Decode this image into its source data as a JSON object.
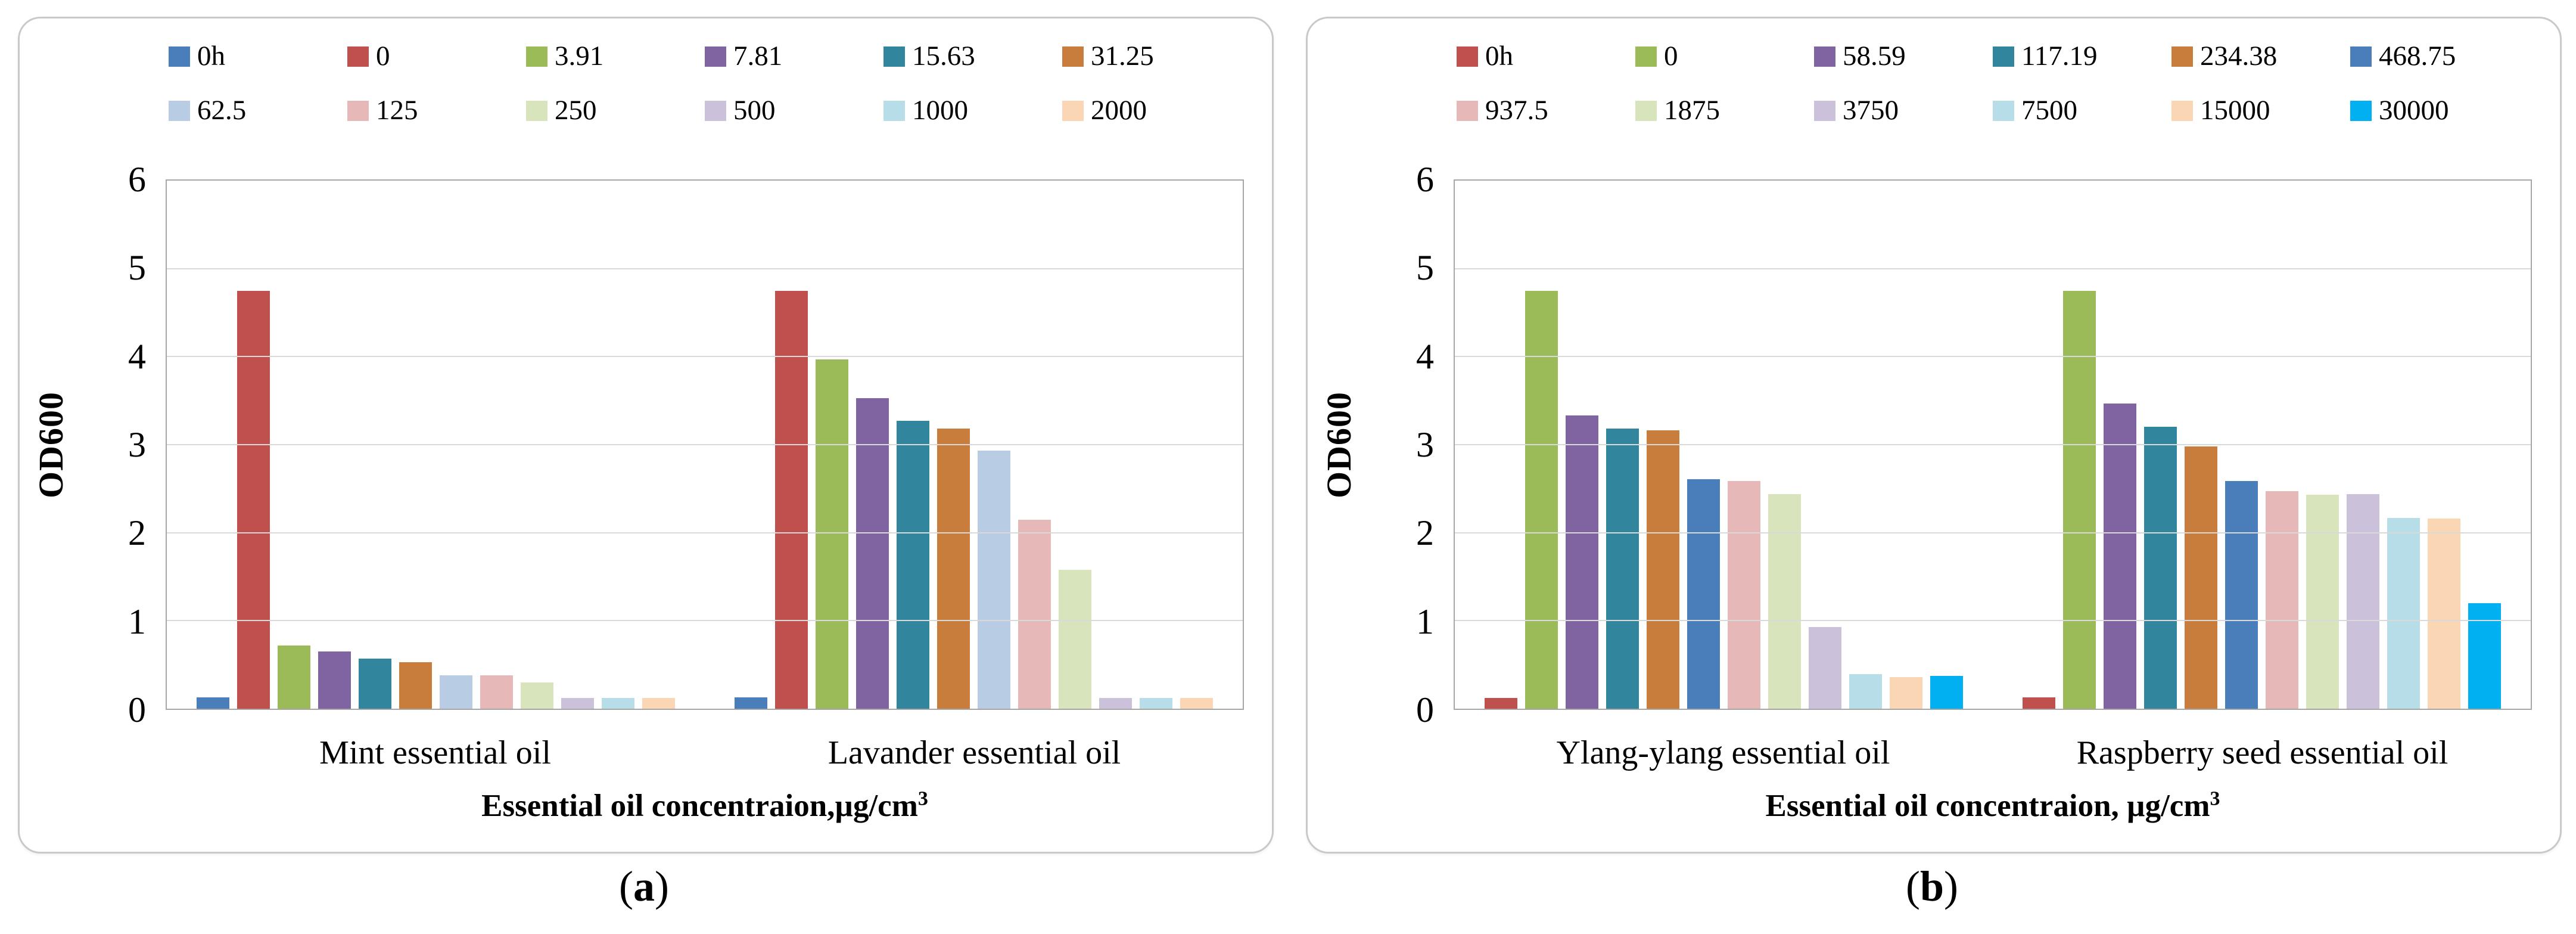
{
  "chart_data": [
    {
      "type": "bar",
      "panel": "a",
      "caption_prefix": "(",
      "caption_letter": "a",
      "caption_suffix": ")",
      "ylabel": "OD600",
      "xlabel_main": "Essential oil concentraion,µg/cm",
      "xlabel_sup": "3",
      "ylim": [
        0,
        6
      ],
      "yticks": [
        "0",
        "1",
        "2",
        "3",
        "4",
        "5",
        "6"
      ],
      "grid": true,
      "legend_position": "top",
      "categories": [
        "Mint essential oil",
        "Lavander essential oil"
      ],
      "series": [
        {
          "name": "0h",
          "color": "#4a7ebb",
          "values": [
            0.13,
            0.13
          ]
        },
        {
          "name": "0",
          "color": "#c0504d",
          "values": [
            4.75,
            4.75
          ]
        },
        {
          "name": "3.91",
          "color": "#9bbb59",
          "values": [
            0.72,
            3.97
          ]
        },
        {
          "name": "7.81",
          "color": "#8064a2",
          "values": [
            0.65,
            3.53
          ]
        },
        {
          "name": "15.63",
          "color": "#31859c",
          "values": [
            0.57,
            3.27
          ]
        },
        {
          "name": "31.25",
          "color": "#c87d3c",
          "values": [
            0.53,
            3.18
          ]
        },
        {
          "name": "62.5",
          "color": "#b8cce4",
          "values": [
            0.38,
            2.93
          ]
        },
        {
          "name": "125",
          "color": "#e6b9b8",
          "values": [
            0.38,
            2.15
          ]
        },
        {
          "name": "250",
          "color": "#d7e4bc",
          "values": [
            0.3,
            1.58
          ]
        },
        {
          "name": "500",
          "color": "#ccc1da",
          "values": [
            0.12,
            0.12
          ]
        },
        {
          "name": "1000",
          "color": "#b7dee8",
          "values": [
            0.12,
            0.12
          ]
        },
        {
          "name": "2000",
          "color": "#fbd6b5",
          "values": [
            0.12,
            0.12
          ]
        }
      ]
    },
    {
      "type": "bar",
      "panel": "b",
      "caption_prefix": "(",
      "caption_letter": "b",
      "caption_suffix": ")",
      "ylabel": "OD600",
      "xlabel_main": "Essential oil concentraion, µg/cm",
      "xlabel_sup": "3",
      "ylim": [
        0,
        6
      ],
      "yticks": [
        "0",
        "1",
        "2",
        "3",
        "4",
        "5",
        "6"
      ],
      "grid": true,
      "legend_position": "top",
      "categories": [
        "Ylang-ylang essential oil",
        "Raspberry seed essential oil"
      ],
      "series": [
        {
          "name": "0h",
          "color": "#c0504d",
          "values": [
            0.12,
            0.13
          ]
        },
        {
          "name": "0",
          "color": "#9bbb59",
          "values": [
            4.75,
            4.75
          ]
        },
        {
          "name": "58.59",
          "color": "#8064a2",
          "values": [
            3.33,
            3.47
          ]
        },
        {
          "name": "117.19",
          "color": "#31859c",
          "values": [
            3.18,
            3.2
          ]
        },
        {
          "name": "234.38",
          "color": "#c87d3c",
          "values": [
            3.16,
            2.98
          ]
        },
        {
          "name": "468.75",
          "color": "#4a7ebb",
          "values": [
            2.61,
            2.59
          ]
        },
        {
          "name": "937.5",
          "color": "#e6b9b8",
          "values": [
            2.59,
            2.47
          ]
        },
        {
          "name": "1875",
          "color": "#d7e4bc",
          "values": [
            2.44,
            2.43
          ]
        },
        {
          "name": "3750",
          "color": "#ccc1da",
          "values": [
            0.93,
            2.44
          ]
        },
        {
          "name": "7500",
          "color": "#b7dee8",
          "values": [
            0.39,
            2.17
          ]
        },
        {
          "name": "15000",
          "color": "#fbd6b5",
          "values": [
            0.36,
            2.16
          ]
        },
        {
          "name": "30000",
          "color": "#00b0f0",
          "values": [
            0.37,
            1.2
          ]
        }
      ]
    }
  ]
}
